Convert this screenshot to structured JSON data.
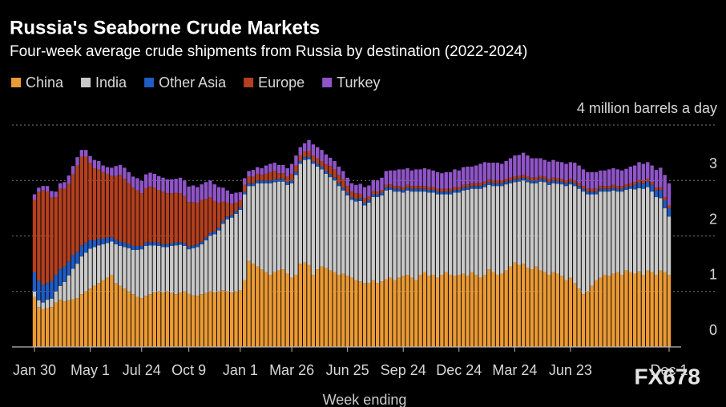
{
  "chart_data": {
    "type": "stacked-bar",
    "title": "Russia's Seaborne Crude Markets",
    "subtitle": "Four-week average crude shipments from Russia by destination (2022-2024)",
    "x_label": "Week ending",
    "watermark": "FX678",
    "ylim": [
      0,
      4
    ],
    "yticks": [
      0,
      1,
      2,
      3,
      {
        "value": 4,
        "label": "4 million barrels a day"
      }
    ],
    "grid": true,
    "categories": [
      "Jan 30",
      null,
      null,
      null,
      null,
      null,
      null,
      null,
      null,
      null,
      null,
      null,
      null,
      "May 1",
      null,
      null,
      null,
      null,
      null,
      null,
      null,
      null,
      null,
      null,
      null,
      "Jul 24",
      null,
      null,
      null,
      null,
      null,
      null,
      null,
      null,
      null,
      null,
      "Oct 9",
      null,
      null,
      null,
      null,
      null,
      null,
      null,
      null,
      null,
      null,
      null,
      "Jan 1",
      null,
      null,
      null,
      null,
      null,
      null,
      null,
      null,
      null,
      null,
      null,
      "Mar 26",
      null,
      null,
      null,
      null,
      null,
      null,
      null,
      null,
      null,
      null,
      null,
      null,
      "Jun 25",
      null,
      null,
      null,
      null,
      null,
      null,
      null,
      null,
      null,
      null,
      null,
      null,
      "Sep 24",
      null,
      null,
      null,
      null,
      null,
      null,
      null,
      null,
      null,
      null,
      null,
      null,
      "Dec 24",
      null,
      null,
      null,
      null,
      null,
      null,
      null,
      null,
      null,
      null,
      null,
      null,
      "Mar 24",
      null,
      null,
      null,
      null,
      null,
      null,
      null,
      null,
      null,
      null,
      null,
      null,
      "Jun 23",
      null,
      null,
      null,
      null,
      null,
      null,
      null,
      null,
      null,
      null,
      null,
      null,
      null,
      null,
      null,
      null,
      null,
      null,
      null,
      null,
      null,
      null,
      "Dec 1"
    ],
    "series": [
      {
        "name": "China",
        "color": "#eb9a34",
        "values": [
          0.9,
          0.72,
          0.68,
          0.7,
          0.72,
          0.8,
          0.85,
          0.82,
          0.84,
          0.86,
          0.88,
          0.95,
          1.0,
          1.05,
          1.1,
          1.15,
          1.2,
          1.25,
          1.3,
          1.15,
          1.1,
          1.05,
          1.0,
          0.95,
          0.9,
          0.88,
          0.92,
          0.95,
          0.98,
          1.0,
          0.98,
          1.0,
          0.97,
          0.95,
          0.98,
          1.0,
          0.96,
          0.93,
          0.92,
          0.95,
          0.97,
          1.0,
          0.98,
          1.0,
          1.02,
          1.0,
          0.98,
          1.0,
          1.02,
          1.2,
          1.55,
          1.5,
          1.45,
          1.4,
          1.35,
          1.3,
          1.35,
          1.38,
          1.4,
          1.32,
          1.25,
          1.3,
          1.5,
          1.52,
          1.48,
          1.3,
          1.4,
          1.45,
          1.42,
          1.38,
          1.35,
          1.3,
          1.32,
          1.28,
          1.25,
          1.2,
          1.18,
          1.15,
          1.15,
          1.2,
          1.15,
          1.18,
          1.22,
          1.25,
          1.2,
          1.25,
          1.28,
          1.3,
          1.25,
          1.2,
          1.3,
          1.35,
          1.28,
          1.3,
          1.25,
          1.3,
          1.35,
          1.3,
          1.28,
          1.3,
          1.32,
          1.28,
          1.35,
          1.3,
          1.25,
          1.3,
          1.4,
          1.35,
          1.3,
          1.32,
          1.38,
          1.45,
          1.52,
          1.48,
          1.5,
          1.42,
          1.4,
          1.45,
          1.38,
          1.35,
          1.3,
          1.35,
          1.32,
          1.28,
          1.2,
          1.25,
          1.15,
          1.05,
          0.95,
          1.0,
          1.1,
          1.2,
          1.25,
          1.3,
          1.28,
          1.32,
          1.35,
          1.3,
          1.38,
          1.35,
          1.32,
          1.36,
          1.3,
          1.38,
          1.35,
          1.3,
          1.38,
          1.35,
          1.3
        ]
      },
      {
        "name": "India",
        "color": "#c9c9c9",
        "values": [
          0.1,
          0.12,
          0.12,
          0.15,
          0.15,
          0.2,
          0.25,
          0.35,
          0.45,
          0.55,
          0.62,
          0.68,
          0.7,
          0.72,
          0.7,
          0.68,
          0.65,
          0.62,
          0.6,
          0.7,
          0.72,
          0.75,
          0.78,
          0.8,
          0.85,
          0.88,
          0.9,
          0.88,
          0.85,
          0.82,
          0.82,
          0.8,
          0.85,
          0.88,
          0.86,
          0.82,
          0.8,
          0.85,
          0.88,
          0.9,
          0.95,
          1.0,
          1.05,
          1.1,
          1.2,
          1.3,
          1.35,
          1.4,
          1.45,
          1.55,
          1.35,
          1.4,
          1.5,
          1.55,
          1.6,
          1.65,
          1.62,
          1.6,
          1.58,
          1.6,
          1.7,
          1.8,
          1.8,
          1.85,
          1.9,
          2.0,
          1.85,
          1.75,
          1.7,
          1.68,
          1.65,
          1.6,
          1.5,
          1.45,
          1.4,
          1.42,
          1.45,
          1.4,
          1.45,
          1.5,
          1.55,
          1.55,
          1.6,
          1.58,
          1.6,
          1.55,
          1.5,
          1.52,
          1.55,
          1.6,
          1.5,
          1.45,
          1.5,
          1.48,
          1.5,
          1.45,
          1.4,
          1.45,
          1.5,
          1.48,
          1.5,
          1.55,
          1.5,
          1.55,
          1.6,
          1.58,
          1.52,
          1.55,
          1.6,
          1.58,
          1.55,
          1.5,
          1.45,
          1.5,
          1.5,
          1.55,
          1.55,
          1.5,
          1.6,
          1.62,
          1.62,
          1.6,
          1.62,
          1.65,
          1.7,
          1.68,
          1.75,
          1.8,
          1.85,
          1.75,
          1.65,
          1.55,
          1.55,
          1.5,
          1.52,
          1.5,
          1.45,
          1.5,
          1.45,
          1.5,
          1.52,
          1.5,
          1.55,
          1.5,
          1.45,
          1.4,
          1.3,
          1.15,
          1.05
        ]
      },
      {
        "name": "Other Asia",
        "color": "#1f5cc4",
        "values": [
          0.35,
          0.35,
          0.32,
          0.3,
          0.32,
          0.3,
          0.3,
          0.28,
          0.25,
          0.25,
          0.22,
          0.2,
          0.18,
          0.15,
          0.12,
          0.12,
          0.1,
          0.1,
          0.08,
          0.08,
          0.08,
          0.08,
          0.07,
          0.07,
          0.07,
          0.06,
          0.06,
          0.06,
          0.06,
          0.06,
          0.05,
          0.05,
          0.05,
          0.05,
          0.05,
          0.05,
          0.05,
          0.05,
          0.05,
          0.05,
          0.05,
          0.05,
          0.05,
          0.05,
          0.05,
          0.05,
          0.05,
          0.05,
          0.05,
          0.05,
          0.05,
          0.05,
          0.05,
          0.05,
          0.05,
          0.05,
          0.05,
          0.05,
          0.05,
          0.05,
          0.05,
          0.05,
          0.05,
          0.05,
          0.05,
          0.05,
          0.05,
          0.05,
          0.05,
          0.05,
          0.05,
          0.05,
          0.05,
          0.05,
          0.05,
          0.05,
          0.05,
          0.05,
          0.05,
          0.05,
          0.05,
          0.05,
          0.05,
          0.05,
          0.05,
          0.05,
          0.05,
          0.05,
          0.05,
          0.05,
          0.05,
          0.05,
          0.05,
          0.05,
          0.05,
          0.05,
          0.05,
          0.05,
          0.05,
          0.05,
          0.05,
          0.05,
          0.05,
          0.05,
          0.05,
          0.05,
          0.05,
          0.05,
          0.05,
          0.05,
          0.05,
          0.05,
          0.05,
          0.05,
          0.05,
          0.05,
          0.05,
          0.05,
          0.05,
          0.05,
          0.05,
          0.05,
          0.05,
          0.05,
          0.05,
          0.05,
          0.05,
          0.05,
          0.05,
          0.05,
          0.05,
          0.05,
          0.05,
          0.05,
          0.05,
          0.05,
          0.05,
          0.05,
          0.05,
          0.05,
          0.08,
          0.1,
          0.1,
          0.1,
          0.12,
          0.12,
          0.15,
          0.15,
          0.15
        ]
      },
      {
        "name": "Europe",
        "color": "#b3401e",
        "values": [
          1.3,
          1.6,
          1.7,
          1.65,
          1.5,
          1.4,
          1.45,
          1.4,
          1.4,
          1.45,
          1.55,
          1.6,
          1.55,
          1.4,
          1.3,
          1.25,
          1.2,
          1.15,
          1.1,
          1.15,
          1.2,
          1.15,
          1.1,
          1.05,
          1.0,
          0.95,
          0.98,
          1.0,
          0.98,
          0.95,
          0.95,
          0.92,
          0.9,
          0.9,
          0.88,
          0.85,
          0.8,
          0.78,
          0.75,
          0.75,
          0.7,
          0.65,
          0.55,
          0.45,
          0.35,
          0.25,
          0.2,
          0.15,
          0.12,
          0.12,
          0.12,
          0.12,
          0.12,
          0.1,
          0.12,
          0.15,
          0.15,
          0.1,
          0.1,
          0.1,
          0.12,
          0.12,
          0.1,
          0.1,
          0.1,
          0.1,
          0.1,
          0.1,
          0.12,
          0.15,
          0.15,
          0.15,
          0.15,
          0.12,
          0.1,
          0.1,
          0.08,
          0.08,
          0.06,
          0.06,
          0.05,
          0.05,
          0.05,
          0.05,
          0.05,
          0.05,
          0.05,
          0.05,
          0.05,
          0.05,
          0.05,
          0.05,
          0.05,
          0.05,
          0.05,
          0.05,
          0.05,
          0.05,
          0.05,
          0.05,
          0.05,
          0.05,
          0.05,
          0.05,
          0.05,
          0.05,
          0.05,
          0.05,
          0.05,
          0.05,
          0.05,
          0.05,
          0.05,
          0.05,
          0.05,
          0.05,
          0.05,
          0.05,
          0.05,
          0.05,
          0.05,
          0.05,
          0.05,
          0.05,
          0.05,
          0.05,
          0.05,
          0.05,
          0.05,
          0.05,
          0.05,
          0.05,
          0.05,
          0.05,
          0.05,
          0.05,
          0.05,
          0.05,
          0.05,
          0.05,
          0.05,
          0.05,
          0.05,
          0.05,
          0.05,
          0.05,
          0.05,
          0.05,
          0.05
        ]
      },
      {
        "name": "Turkey",
        "color": "#8f55c8",
        "values": [
          0.1,
          0.08,
          0.08,
          0.1,
          0.12,
          0.1,
          0.1,
          0.12,
          0.15,
          0.15,
          0.15,
          0.12,
          0.12,
          0.12,
          0.15,
          0.15,
          0.12,
          0.12,
          0.15,
          0.18,
          0.18,
          0.2,
          0.2,
          0.2,
          0.22,
          0.22,
          0.25,
          0.25,
          0.25,
          0.25,
          0.25,
          0.25,
          0.25,
          0.25,
          0.28,
          0.28,
          0.28,
          0.3,
          0.28,
          0.28,
          0.3,
          0.3,
          0.3,
          0.28,
          0.25,
          0.22,
          0.18,
          0.18,
          0.15,
          0.12,
          0.1,
          0.12,
          0.12,
          0.12,
          0.15,
          0.15,
          0.15,
          0.15,
          0.15,
          0.15,
          0.18,
          0.18,
          0.15,
          0.15,
          0.2,
          0.2,
          0.2,
          0.2,
          0.18,
          0.15,
          0.15,
          0.15,
          0.15,
          0.15,
          0.15,
          0.15,
          0.18,
          0.2,
          0.2,
          0.2,
          0.2,
          0.22,
          0.25,
          0.25,
          0.28,
          0.3,
          0.32,
          0.3,
          0.28,
          0.3,
          0.3,
          0.32,
          0.32,
          0.3,
          0.3,
          0.28,
          0.3,
          0.3,
          0.32,
          0.3,
          0.32,
          0.32,
          0.3,
          0.32,
          0.35,
          0.35,
          0.3,
          0.32,
          0.32,
          0.3,
          0.32,
          0.35,
          0.38,
          0.38,
          0.4,
          0.38,
          0.35,
          0.35,
          0.32,
          0.3,
          0.32,
          0.32,
          0.3,
          0.3,
          0.3,
          0.3,
          0.32,
          0.32,
          0.3,
          0.3,
          0.3,
          0.3,
          0.28,
          0.28,
          0.3,
          0.3,
          0.3,
          0.28,
          0.28,
          0.3,
          0.3,
          0.32,
          0.3,
          0.3,
          0.3,
          0.32,
          0.35,
          0.4,
          0.4
        ]
      }
    ]
  }
}
